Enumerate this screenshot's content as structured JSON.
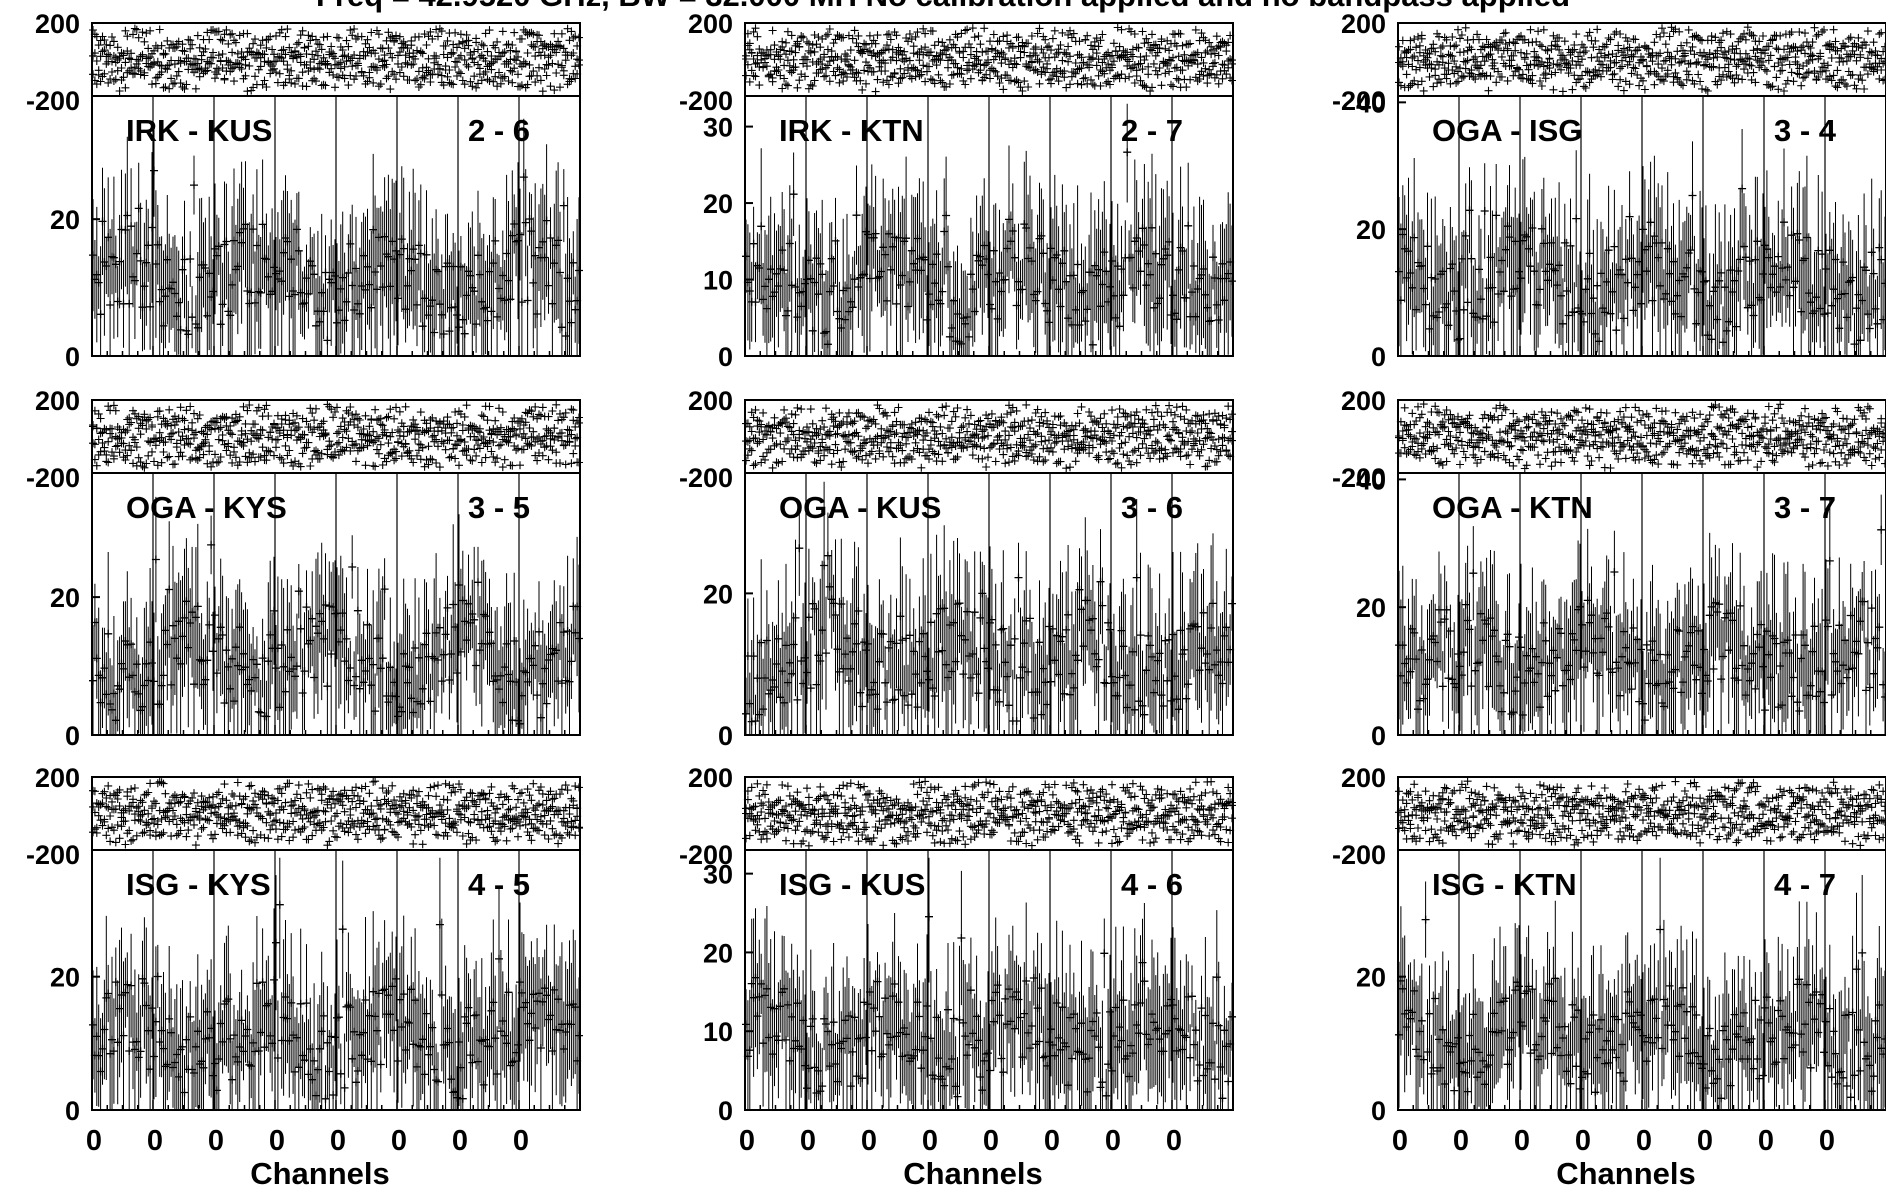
{
  "title": "Freq = 42.9520 GHz, BW = 32.000 MH   No calibration applied and no bandpass applied",
  "chart_data": {
    "type": "scatter",
    "xlabel": "Channels",
    "x_tick_labels": [
      "0",
      "0",
      "0",
      "0",
      "0",
      "0",
      "0",
      "0"
    ],
    "phase_ticks": [
      "200",
      "-200"
    ],
    "ink_color": "#000000",
    "panels": [
      {
        "baseline": "IRK - KUS",
        "pair": "2 - 6",
        "amp_ticks": [
          "20",
          "0"
        ],
        "amp_ylim": [
          0,
          38
        ],
        "phase_ylim": [
          -200,
          200
        ]
      },
      {
        "baseline": "IRK - KTN",
        "pair": "2 - 7",
        "amp_ticks": [
          "30",
          "20",
          "10",
          "0"
        ],
        "amp_ylim": [
          0,
          34
        ],
        "phase_ylim": [
          -200,
          200
        ]
      },
      {
        "baseline": "OGA - ISG",
        "pair": "3 - 4",
        "amp_ticks": [
          "40",
          "20",
          "0"
        ],
        "amp_ylim": [
          0,
          41
        ],
        "phase_ylim": [
          -200,
          200
        ]
      },
      {
        "baseline": "OGA - KYS",
        "pair": "3 - 5",
        "amp_ticks": [
          "20",
          "0"
        ],
        "amp_ylim": [
          0,
          38
        ],
        "phase_ylim": [
          -200,
          200
        ]
      },
      {
        "baseline": "OGA - KUS",
        "pair": "3 - 6",
        "amp_ticks": [
          "20",
          "0"
        ],
        "amp_ylim": [
          0,
          37
        ],
        "phase_ylim": [
          -200,
          200
        ]
      },
      {
        "baseline": "OGA - KTN",
        "pair": "3 - 7",
        "amp_ticks": [
          "40",
          "20",
          "0"
        ],
        "amp_ylim": [
          0,
          41
        ],
        "phase_ylim": [
          -200,
          200
        ]
      },
      {
        "baseline": "ISG - KYS",
        "pair": "4 - 5",
        "amp_ticks": [
          "20",
          "0"
        ],
        "amp_ylim": [
          0,
          39
        ],
        "phase_ylim": [
          -200,
          200
        ]
      },
      {
        "baseline": "ISG - KUS",
        "pair": "4 - 6",
        "amp_ticks": [
          "30",
          "20",
          "10",
          "0"
        ],
        "amp_ylim": [
          0,
          33
        ],
        "phase_ylim": [
          -200,
          200
        ]
      },
      {
        "baseline": "ISG - KTN",
        "pair": "4 - 7",
        "amp_ticks": [
          "20",
          "0"
        ],
        "amp_ylim": [
          0,
          39
        ],
        "phase_ylim": [
          -200,
          200
        ]
      }
    ]
  }
}
